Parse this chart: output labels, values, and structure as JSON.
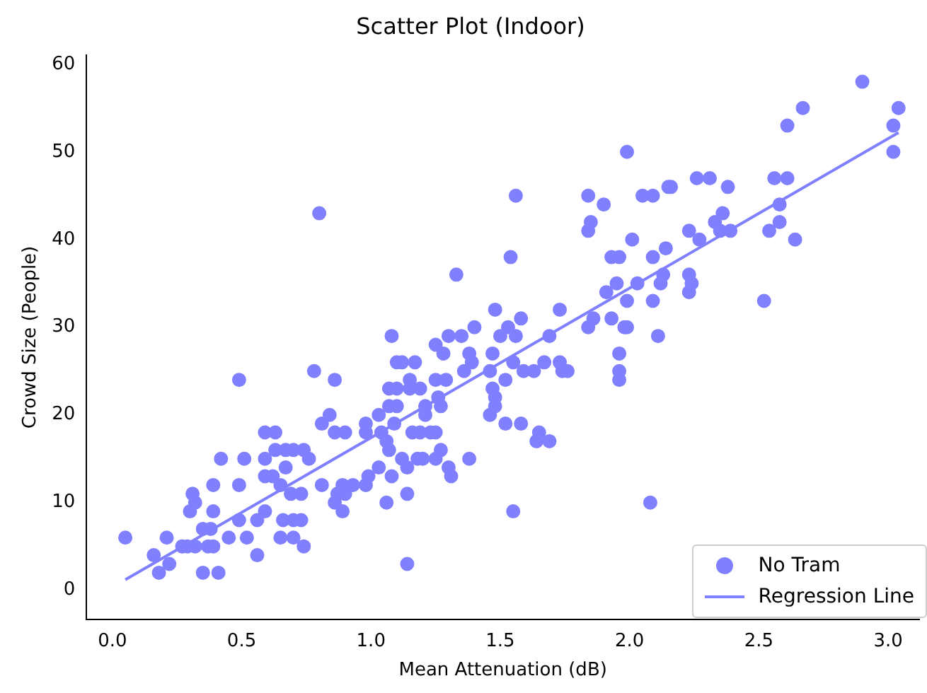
{
  "chart_data": {
    "type": "scatter",
    "title": "Scatter Plot (Indoor)",
    "xlabel": "Mean Attenuation (dB)",
    "ylabel": "Crowd Size (People)",
    "xlim": [
      -0.1,
      3.12
    ],
    "ylim": [
      -3.3,
      61
    ],
    "xticks": [
      {
        "value": 0,
        "label": "0.0"
      },
      {
        "value": 0.5,
        "label": "0.5"
      },
      {
        "value": 1,
        "label": "1.0"
      },
      {
        "value": 1.5,
        "label": "1.5"
      },
      {
        "value": 2,
        "label": "2.0"
      },
      {
        "value": 2.5,
        "label": "2.5"
      },
      {
        "value": 3,
        "label": "3.0"
      }
    ],
    "yticks": [
      0,
      10,
      20,
      30,
      40,
      50,
      60
    ],
    "grid": false,
    "legend": "bottom right",
    "marker": "circle",
    "series": [
      {
        "name": "No Tram",
        "type": "scatter",
        "color": "#8080ff",
        "x": [
          2.9,
          2.67,
          3.04,
          2.61,
          3.02,
          3.02,
          2.26,
          2.31,
          2.38,
          2.56,
          2.61,
          2.58,
          2.58,
          2.54,
          2.64,
          2.36,
          2.33,
          2.35,
          2.39,
          2.23,
          2.27,
          2.23,
          2.24,
          2.23,
          2.52,
          2.16,
          1.99,
          1.56,
          1.84,
          1.9,
          2.05,
          2.09,
          2.15,
          1.85,
          1.84,
          2.01,
          1.54,
          1.93,
          1.96,
          2.09,
          2.14,
          1.95,
          1.91,
          2.03,
          2.13,
          2.12,
          1.99,
          2.09,
          1.58,
          1.53,
          1.5,
          1.56,
          1.73,
          1.69,
          1.84,
          1.86,
          1.93,
          1.98,
          1.99,
          2.11,
          1.96,
          1.96,
          1.96,
          1.55,
          1.59,
          1.63,
          1.67,
          1.73,
          1.74,
          1.76,
          1.52,
          1.52,
          1.58,
          1.65,
          1.64,
          1.69,
          2.08,
          1.55,
          1.33,
          1.48,
          1.08,
          1.25,
          1.28,
          1.3,
          1.35,
          1.4,
          1.1,
          1.12,
          1.17,
          0.78,
          0.86,
          1.38,
          1.39,
          1.36,
          1.47,
          1.46,
          1.47,
          1.48,
          1.48,
          1.46,
          1.07,
          1.1,
          1.15,
          1.15,
          1.19,
          1.25,
          1.29,
          1.26,
          1.21,
          1.27,
          1.07,
          1.1,
          1.03,
          0.84,
          0.81,
          0.98,
          1.09,
          1.21,
          1.16,
          1.19,
          1.23,
          1.25,
          0.98,
          1.04,
          0.86,
          0.9,
          1.06,
          1.07,
          1.12,
          1.18,
          1.2,
          1.25,
          1.27,
          1.38,
          1.3,
          1.31,
          1.14,
          1.08,
          1.03,
          0.99,
          0.93,
          0.89,
          0.98,
          0.9,
          1.14,
          1.06,
          0.86,
          0.89,
          1.14,
          0.8,
          0.49,
          0.59,
          0.63,
          0.42,
          0.51,
          0.59,
          0.63,
          0.67,
          0.7,
          0.74,
          0.76,
          0.67,
          0.59,
          0.62,
          0.65,
          0.49,
          0.39,
          0.31,
          0.32,
          0.3,
          0.39,
          0.49,
          0.56,
          0.66,
          0.7,
          0.73,
          0.59,
          0.69,
          0.73,
          0.81,
          0.87,
          0.35,
          0.38,
          0.45,
          0.52,
          0.56,
          0.65,
          0.7,
          0.74,
          0.27,
          0.29,
          0.32,
          0.37,
          0.39,
          0.05,
          0.21,
          0.16,
          0.22,
          0.18,
          0.35,
          0.41
        ],
        "values": [
          58,
          55,
          55,
          53,
          53,
          50,
          47,
          47,
          46,
          47,
          47,
          44,
          42,
          41,
          40,
          43,
          42,
          41,
          41,
          41,
          40,
          36,
          35,
          34,
          33,
          46,
          50,
          45,
          45,
          44,
          45,
          45,
          46,
          42,
          41,
          40,
          38,
          38,
          38,
          38,
          39,
          35,
          34,
          35,
          36,
          35,
          33,
          33,
          31,
          30,
          29,
          29,
          32,
          29,
          30,
          31,
          31,
          30,
          30,
          29,
          27,
          25,
          24,
          26,
          25,
          25,
          26,
          26,
          25,
          25,
          24,
          19,
          19,
          18,
          17,
          17,
          10,
          9,
          36,
          32,
          29,
          28,
          27,
          29,
          29,
          30,
          26,
          26,
          26,
          25,
          24,
          27,
          26,
          25,
          27,
          25,
          23,
          22,
          21,
          20,
          23,
          23,
          24,
          23,
          23,
          24,
          24,
          22,
          21,
          21,
          21,
          21,
          20,
          20,
          19,
          19,
          19,
          20,
          18,
          18,
          18,
          18,
          18,
          18,
          18,
          18,
          17,
          16,
          15,
          15,
          15,
          15,
          16,
          15,
          14,
          13,
          14,
          13,
          14,
          13,
          12,
          12,
          12,
          11,
          11,
          10,
          10,
          9,
          3,
          43,
          24,
          18,
          18,
          15,
          15,
          15,
          16,
          16,
          16,
          16,
          15,
          14,
          13,
          13,
          12,
          12,
          12,
          11,
          10,
          9,
          9,
          8,
          8,
          8,
          8,
          8,
          9,
          11,
          11,
          12,
          11,
          7,
          7,
          6,
          6,
          4,
          6,
          6,
          5,
          5,
          5,
          5,
          5,
          5,
          6,
          6,
          4,
          3,
          2,
          2,
          2
        ]
      },
      {
        "name": "Regression Line",
        "type": "line",
        "color": "#8080ff",
        "line_style": "solid",
        "marker": "none",
        "x": [
          0.05,
          3.04
        ],
        "values": [
          1.2,
          52.2
        ]
      }
    ]
  }
}
